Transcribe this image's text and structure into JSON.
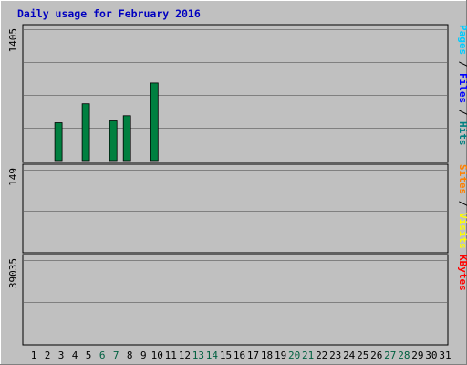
{
  "chart_data": {
    "type": "bar",
    "title": "Daily usage for February 2016",
    "categories": [
      "1",
      "2",
      "3",
      "4",
      "5",
      "6",
      "7",
      "8",
      "9",
      "10",
      "11",
      "12",
      "13",
      "14",
      "15",
      "16",
      "17",
      "18",
      "19",
      "20",
      "21",
      "22",
      "23",
      "24",
      "25",
      "26",
      "27",
      "28",
      "29",
      "30",
      "31"
    ],
    "weekend_days": [
      6,
      7,
      13,
      14,
      20,
      21,
      27,
      28
    ],
    "grid": true,
    "panels": [
      {
        "name": "pages-files-hits",
        "max": 1405,
        "max_label": "1405",
        "side_label_parts": [
          {
            "text": "Pages",
            "color": "#00ccff"
          },
          {
            "text": " / ",
            "color": "#000000"
          },
          {
            "text": "Files",
            "color": "#0000ff"
          },
          {
            "text": " / ",
            "color": "#000000"
          },
          {
            "text": "Hits",
            "color": "#008080"
          }
        ],
        "series": [
          {
            "name": "Hits",
            "color": "#008040",
            "values": [
              0,
              0,
              405,
              0,
              608,
              0,
              424,
              480,
              0,
              830,
              0,
              0,
              0,
              0,
              0,
              0,
              0,
              0,
              0,
              0,
              0,
              0,
              0,
              0,
              0,
              0,
              0,
              0,
              0,
              0,
              0
            ]
          },
          {
            "name": "Files",
            "color": "#0000e0",
            "values": [
              0,
              0,
              0,
              0,
              0,
              0,
              0,
              0,
              0,
              0,
              0,
              0,
              0,
              0,
              0,
              0,
              0,
              0,
              0,
              0,
              0,
              0,
              0,
              0,
              0,
              0,
              0,
              0,
              0,
              0,
              0
            ]
          },
          {
            "name": "Pages",
            "color": "#00b4ff",
            "values": [
              0,
              0,
              0,
              0,
              0,
              0,
              0,
              0,
              0,
              0,
              0,
              0,
              0,
              0,
              0,
              0,
              0,
              0,
              0,
              0,
              0,
              0,
              0,
              0,
              0,
              0,
              0,
              0,
              0,
              0,
              0
            ]
          }
        ]
      },
      {
        "name": "sites-visits",
        "max": 149,
        "max_label": "149",
        "side_label_parts": [
          {
            "text": "Sites",
            "color": "#ff8000"
          },
          {
            "text": " / ",
            "color": "#000000"
          },
          {
            "text": "Visits",
            "color": "#ffff00"
          }
        ],
        "series": [
          {
            "name": "Visits",
            "color": "#ffff00",
            "values": [
              0,
              0,
              0,
              0,
              0,
              0,
              0,
              0,
              0,
              0,
              0,
              0,
              0,
              0,
              0,
              0,
              0,
              0,
              0,
              0,
              0,
              0,
              0,
              0,
              0,
              0,
              0,
              0,
              0,
              0,
              0
            ]
          },
          {
            "name": "Sites",
            "color": "#ff8000",
            "values": [
              0,
              0,
              0,
              0,
              0,
              0,
              0,
              0,
              0,
              0,
              0,
              0,
              0,
              0,
              0,
              0,
              0,
              0,
              0,
              0,
              0,
              0,
              0,
              0,
              0,
              0,
              0,
              0,
              0,
              0,
              0
            ]
          }
        ]
      },
      {
        "name": "kbytes",
        "max": 39035,
        "max_label": "39035",
        "side_label_parts": [
          {
            "text": "KBytes",
            "color": "#ff0000"
          }
        ],
        "series": [
          {
            "name": "KBytes",
            "color": "#ff0000",
            "values": [
              0,
              0,
              0,
              0,
              0,
              0,
              0,
              0,
              0,
              0,
              0,
              0,
              0,
              0,
              0,
              0,
              0,
              0,
              0,
              0,
              0,
              0,
              0,
              0,
              0,
              0,
              0,
              0,
              0,
              0,
              0
            ]
          }
        ]
      }
    ]
  }
}
